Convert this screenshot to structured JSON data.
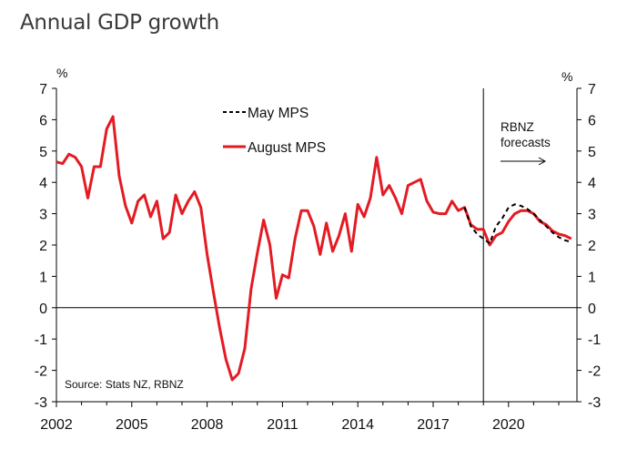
{
  "title": "Annual GDP growth",
  "chart_data": {
    "type": "line",
    "title": "Annual GDP growth",
    "xlabel": "",
    "ylabel": "%",
    "ylabel_right": "%",
    "xlim": [
      2002,
      2022.9
    ],
    "ylim": [
      -3,
      7
    ],
    "x_ticks": [
      2002,
      2005,
      2008,
      2011,
      2014,
      2017,
      2020
    ],
    "x_tick_labels": [
      "2002",
      "2005",
      "2008",
      "2011",
      "2014",
      "2017",
      "2020"
    ],
    "x_minor_ticks": [
      2003,
      2004,
      2006,
      2007,
      2009,
      2010,
      2012,
      2013,
      2015,
      2016,
      2018,
      2019,
      2021,
      2022
    ],
    "y_ticks": [
      7,
      6,
      5,
      4,
      3,
      2,
      1,
      0,
      -1,
      -2,
      -3
    ],
    "y_tick_labels": [
      "7",
      "6",
      "5",
      "4",
      "3",
      "2",
      "1",
      "0",
      "-1",
      "-2",
      "-3"
    ],
    "grid": false,
    "legend_placement": "top-center",
    "zero_line": true,
    "forecast_divider_x": 2019.0,
    "annotations": {
      "forecast_line1": "RBNZ",
      "forecast_line2": "forecasts",
      "source": "Source: Stats NZ, RBNZ"
    },
    "series": [
      {
        "name": "May MPS",
        "color": "#000000",
        "style": "dashed",
        "x": [
          2018.25,
          2018.5,
          2018.75,
          2019.0,
          2019.25,
          2019.5,
          2019.75,
          2020.0,
          2020.25,
          2020.5,
          2020.75,
          2021.0,
          2021.25,
          2021.5,
          2021.75,
          2022.0,
          2022.25,
          2022.5
        ],
        "values": [
          3.2,
          2.6,
          2.35,
          2.2,
          2.05,
          2.6,
          2.85,
          3.2,
          3.3,
          3.25,
          3.15,
          3.0,
          2.8,
          2.6,
          2.4,
          2.25,
          2.15,
          2.1
        ]
      },
      {
        "name": "August MPS",
        "color": "#e31b23",
        "style": "solid",
        "x": [
          2002.0,
          2002.25,
          2002.5,
          2002.75,
          2003.0,
          2003.25,
          2003.5,
          2003.75,
          2004.0,
          2004.25,
          2004.5,
          2004.75,
          2005.0,
          2005.25,
          2005.5,
          2005.75,
          2006.0,
          2006.25,
          2006.5,
          2006.75,
          2007.0,
          2007.25,
          2007.5,
          2007.75,
          2008.0,
          2008.25,
          2008.5,
          2008.75,
          2009.0,
          2009.25,
          2009.5,
          2009.75,
          2010.0,
          2010.25,
          2010.5,
          2010.75,
          2011.0,
          2011.25,
          2011.5,
          2011.75,
          2012.0,
          2012.25,
          2012.5,
          2012.75,
          2013.0,
          2013.25,
          2013.5,
          2013.75,
          2014.0,
          2014.25,
          2014.5,
          2014.75,
          2015.0,
          2015.25,
          2015.5,
          2015.75,
          2016.0,
          2016.25,
          2016.5,
          2016.75,
          2017.0,
          2017.25,
          2017.5,
          2017.75,
          2018.0,
          2018.25,
          2018.5,
          2018.75,
          2019.0,
          2019.25,
          2019.5,
          2019.75,
          2020.0,
          2020.25,
          2020.5,
          2020.75,
          2021.0,
          2021.25,
          2021.5,
          2021.75,
          2022.0,
          2022.25,
          2022.5
        ],
        "values": [
          4.65,
          4.6,
          4.9,
          4.8,
          4.5,
          3.5,
          4.5,
          4.5,
          5.7,
          6.1,
          4.2,
          3.25,
          2.7,
          3.4,
          3.6,
          2.9,
          3.4,
          2.2,
          2.4,
          3.6,
          3.0,
          3.4,
          3.7,
          3.2,
          1.7,
          0.5,
          -0.65,
          -1.65,
          -2.3,
          -2.1,
          -1.3,
          0.6,
          1.75,
          2.8,
          2.0,
          0.3,
          1.05,
          0.95,
          2.2,
          3.1,
          3.1,
          2.6,
          1.7,
          2.7,
          1.8,
          2.3,
          3.0,
          1.8,
          3.3,
          2.9,
          3.5,
          4.8,
          3.6,
          3.9,
          3.5,
          3.0,
          3.9,
          4.0,
          4.1,
          3.4,
          3.05,
          3.0,
          3.0,
          3.4,
          3.1,
          3.2,
          2.65,
          2.5,
          2.5,
          2.0,
          2.3,
          2.4,
          2.75,
          3.0,
          3.1,
          3.1,
          3.0,
          2.75,
          2.65,
          2.45,
          2.35,
          2.3,
          2.2
        ]
      }
    ]
  }
}
